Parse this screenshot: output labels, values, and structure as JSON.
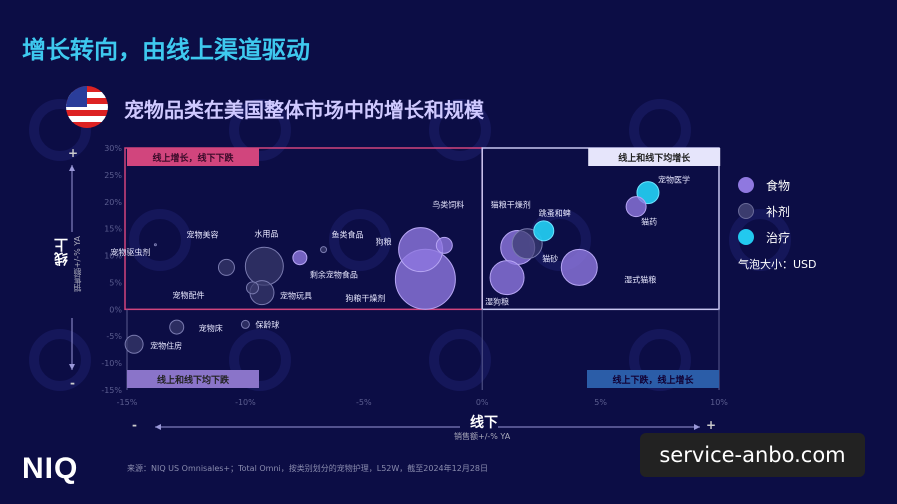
{
  "title": "增长转向，由线上渠道驱动",
  "subtitle": "宠物品类在美国整体市场中的增长和规模",
  "watermark": "NIQ",
  "logo": "NIQ",
  "source": "来源：NIQ US Omnisales+；Total Omni，按类别划分的宠物护理，L52W，截至2024年12月28日",
  "overlay_watermark": "service-anbo.com",
  "axes": {
    "y_label": "线上",
    "y_sub": "销售额+/-% YA",
    "x_label": "线下",
    "x_sub": "销售额+/-% YA",
    "minus": "-",
    "plus": "+"
  },
  "legend": {
    "items": [
      {
        "name": "食物",
        "color": "#8f78e0"
      },
      {
        "name": "补剂",
        "color": "#3b3c6e"
      },
      {
        "name": "治疗",
        "color": "#22c9ef"
      }
    ],
    "bubble_note": "气泡大小：USD"
  },
  "chart_data": {
    "type": "scatter",
    "xlim": [
      -15,
      10
    ],
    "ylim": [
      -15,
      30
    ],
    "x_ticks": [
      "-15%",
      "-10%",
      "-5%",
      "0%",
      "5%",
      "10%"
    ],
    "y_ticks": [
      "30%",
      "25%",
      "20%",
      "15%",
      "10%",
      "5%",
      "0%",
      "-5%",
      "-10%",
      "-15%"
    ],
    "quadrants": [
      "线上增长，线下下跌",
      "线上和线下均增长",
      "线上和线下均下跌",
      "线上下跌，线上增长"
    ],
    "points": [
      {
        "name": "宠物驱虫剂",
        "x": -13.8,
        "y": 12.0,
        "size": 1,
        "type": "补剂"
      },
      {
        "name": "宠物美容",
        "x": -10.8,
        "y": 7.8,
        "size": 8,
        "type": "补剂"
      },
      {
        "name": "水用品",
        "x": -9.2,
        "y": 8.0,
        "size": 19,
        "type": "补剂"
      },
      {
        "name": "宠物配件",
        "x": -9.7,
        "y": 4.0,
        "size": 6,
        "type": "补剂"
      },
      {
        "name": "宠物玩具",
        "x": -9.3,
        "y": 3.1,
        "size": 12,
        "type": "补剂"
      },
      {
        "name": "剩余宠物食品",
        "x": -7.7,
        "y": 9.6,
        "size": 7,
        "type": "食物"
      },
      {
        "name": "鱼类食品",
        "x": -6.7,
        "y": 11.1,
        "size": 3,
        "type": "补剂"
      },
      {
        "name": "狗粮",
        "x": -2.6,
        "y": 11.1,
        "size": 22,
        "type": "食物"
      },
      {
        "name": "鸟类饲料",
        "x": -1.6,
        "y": 11.9,
        "size": 8,
        "type": "食物"
      },
      {
        "name": "狗粮干燥剂",
        "x": -2.4,
        "y": 5.6,
        "size": 30,
        "type": "食物"
      },
      {
        "name": "猫粮干燥剂",
        "x": 1.5,
        "y": 11.5,
        "size": 17,
        "type": "食物"
      },
      {
        "name": "猫砂",
        "x": 1.9,
        "y": 12.2,
        "size": 15,
        "type": "补剂"
      },
      {
        "name": "跳蚤和蜱",
        "x": 2.6,
        "y": 14.6,
        "size": 10,
        "type": "治疗"
      },
      {
        "name": "湿狗粮",
        "x": 1.05,
        "y": 5.9,
        "size": 17,
        "type": "食物"
      },
      {
        "name": "湿式猫粮",
        "x": 4.1,
        "y": 7.8,
        "size": 18,
        "type": "食物"
      },
      {
        "name": "猫药",
        "x": 6.5,
        "y": 19.1,
        "size": 10,
        "type": "食物"
      },
      {
        "name": "宠物医学",
        "x": 7.0,
        "y": 21.7,
        "size": 11,
        "type": "治疗"
      },
      {
        "name": "宠物床",
        "x": -12.9,
        "y": -3.3,
        "size": 7,
        "type": "补剂"
      },
      {
        "name": "保龄球",
        "x": -10.0,
        "y": -2.8,
        "size": 4,
        "type": "补剂"
      },
      {
        "name": "宠物住房",
        "x": -14.7,
        "y": -6.5,
        "size": 9,
        "type": "补剂"
      }
    ]
  }
}
